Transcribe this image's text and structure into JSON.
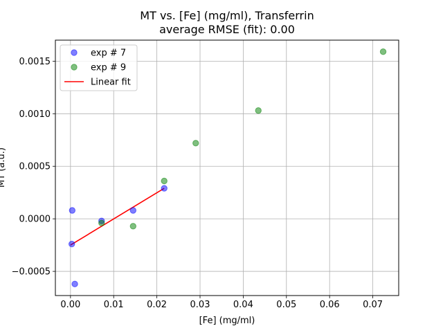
{
  "chart_data": {
    "type": "scatter",
    "title": "MT vs. [Fe] (mg/ml), Transferrin",
    "subtitle": "average RMSE (fit): 0.00",
    "xlabel": "[Fe] (mg/ml)",
    "ylabel": "MT (a.u.)",
    "xlim": [
      -0.0035,
      0.076
    ],
    "ylim": [
      -0.00073,
      0.0017
    ],
    "grid": true,
    "legend_position": "top-left",
    "x_ticks": [
      {
        "value": 0.0,
        "label": "0.00"
      },
      {
        "value": 0.01,
        "label": "0.01"
      },
      {
        "value": 0.02,
        "label": "0.02"
      },
      {
        "value": 0.03,
        "label": "0.03"
      },
      {
        "value": 0.04,
        "label": "0.04"
      },
      {
        "value": 0.05,
        "label": "0.05"
      },
      {
        "value": 0.06,
        "label": "0.06"
      },
      {
        "value": 0.07,
        "label": "0.07"
      }
    ],
    "y_ticks": [
      {
        "value": -0.0005,
        "label": "−0.0005"
      },
      {
        "value": 0.0,
        "label": "0.0000"
      },
      {
        "value": 0.0005,
        "label": "0.0005"
      },
      {
        "value": 0.001,
        "label": "0.0010"
      },
      {
        "value": 0.0015,
        "label": "0.0015"
      }
    ],
    "series": [
      {
        "name": "exp # 7",
        "kind": "scatter",
        "color": "#0000ff",
        "points": [
          {
            "x": 0.0004,
            "y": 8e-05
          },
          {
            "x": 0.0003,
            "y": -0.00024
          },
          {
            "x": 0.001,
            "y": -0.00062
          },
          {
            "x": 0.0072,
            "y": -2e-05
          },
          {
            "x": 0.0145,
            "y": 8e-05
          },
          {
            "x": 0.0217,
            "y": 0.00029
          }
        ]
      },
      {
        "name": "exp # 9",
        "kind": "scatter",
        "color": "#008000",
        "points": [
          {
            "x": 0.0072,
            "y": -4e-05
          },
          {
            "x": 0.0145,
            "y": -7e-05
          },
          {
            "x": 0.0217,
            "y": 0.00036
          },
          {
            "x": 0.029,
            "y": 0.00072
          },
          {
            "x": 0.0435,
            "y": 0.00103
          },
          {
            "x": 0.0724,
            "y": 0.00159
          }
        ]
      },
      {
        "name": "Linear fit",
        "kind": "line",
        "color": "#ff0000",
        "points": [
          {
            "x": 0.0,
            "y": -0.00025
          },
          {
            "x": 0.0217,
            "y": 0.00029
          }
        ]
      }
    ]
  }
}
